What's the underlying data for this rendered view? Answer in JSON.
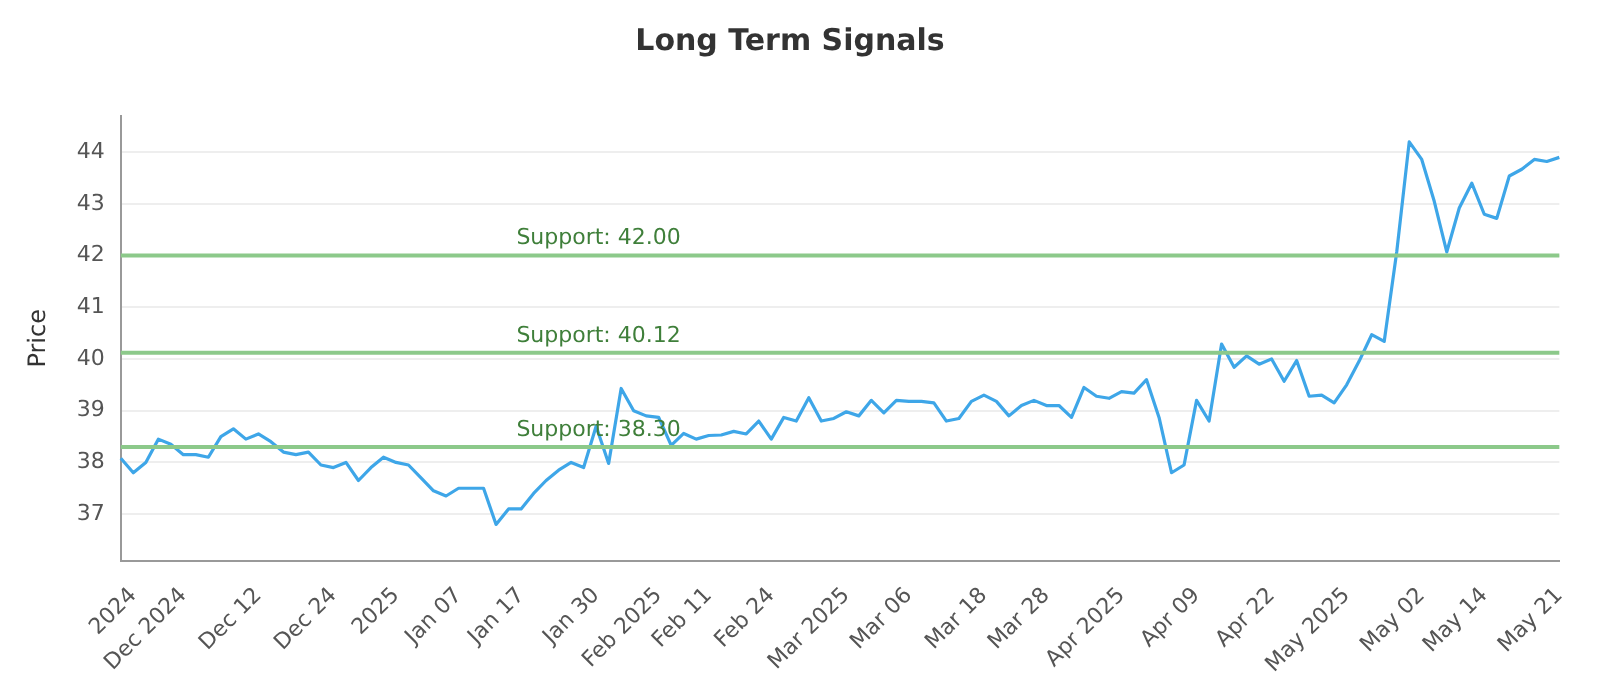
{
  "chart_data": {
    "type": "line",
    "title": "Long Term Signals",
    "ylabel": "Price",
    "categories": [
      null,
      "2024",
      null,
      null,
      null,
      "Dec 2024",
      null,
      null,
      null,
      null,
      null,
      "Dec 12",
      null,
      null,
      null,
      null,
      null,
      "Dec 24",
      null,
      null,
      null,
      null,
      "2025",
      null,
      null,
      null,
      null,
      "Jan 07",
      null,
      null,
      null,
      null,
      "Jan 17",
      null,
      null,
      null,
      null,
      null,
      "Jan 30",
      null,
      null,
      null,
      null,
      "Feb 2025",
      null,
      null,
      null,
      "Feb 11",
      null,
      null,
      null,
      null,
      "Feb 24",
      null,
      null,
      null,
      null,
      null,
      "Mar 2025",
      null,
      null,
      null,
      null,
      "Mar 06",
      null,
      null,
      null,
      null,
      null,
      "Mar 18",
      null,
      null,
      null,
      null,
      "Mar 28",
      null,
      null,
      null,
      null,
      null,
      "Apr 2025",
      null,
      null,
      null,
      null,
      null,
      "Apr 09",
      null,
      null,
      null,
      null,
      null,
      "Apr 22",
      null,
      null,
      null,
      null,
      null,
      "May 2025",
      null,
      null,
      null,
      null,
      null,
      "May 02",
      null,
      null,
      null,
      null,
      "May 14",
      null,
      null,
      null,
      null,
      null,
      "May 21"
    ],
    "series": [
      {
        "color": "#3ea6e8",
        "values": [
          38.08,
          37.8,
          38.0,
          38.45,
          38.35,
          38.15,
          38.15,
          38.1,
          38.5,
          38.65,
          38.45,
          38.55,
          38.4,
          38.2,
          38.15,
          38.2,
          37.95,
          37.9,
          38.0,
          37.65,
          37.9,
          38.1,
          38.0,
          37.95,
          37.7,
          37.45,
          37.35,
          37.5,
          37.5,
          37.5,
          36.8,
          37.1,
          37.1,
          37.4,
          37.65,
          37.85,
          38.0,
          37.9,
          38.7,
          37.98,
          39.43,
          39.0,
          38.9,
          38.87,
          38.33,
          38.56,
          38.45,
          38.52,
          38.53,
          38.6,
          38.55,
          38.8,
          38.45,
          38.87,
          38.8,
          39.25,
          38.8,
          38.85,
          38.98,
          38.9,
          39.2,
          38.96,
          39.2,
          39.18,
          39.18,
          39.15,
          38.8,
          38.85,
          39.18,
          39.3,
          39.18,
          38.9,
          39.1,
          39.2,
          39.1,
          39.1,
          38.87,
          39.45,
          39.28,
          39.24,
          39.37,
          39.34,
          39.6,
          38.87,
          37.8,
          37.95,
          39.2,
          38.8,
          40.29,
          39.84,
          40.06,
          39.9,
          40.0,
          39.57,
          39.97,
          39.28,
          39.3,
          39.15,
          39.5,
          39.96,
          40.47,
          40.34,
          42.07,
          44.2,
          43.86,
          43.05,
          42.07,
          42.92,
          43.4,
          42.8,
          42.72,
          43.54,
          43.67,
          43.86,
          43.82,
          43.9
        ]
      }
    ],
    "ylim": [
      36.1,
      44.7
    ],
    "yticks": [
      37,
      38,
      39,
      40,
      41,
      42,
      43,
      44
    ],
    "grid": "y",
    "marker": "none",
    "line_style": "solid",
    "legend": false,
    "ref_lines": [
      {
        "axis": "y",
        "value": 42.0,
        "label": "Support: 42.00",
        "color": "#8cc98a"
      },
      {
        "axis": "y",
        "value": 40.12,
        "label": "Support: 40.12",
        "color": "#8cc98a"
      },
      {
        "axis": "y",
        "value": 38.3,
        "label": "Support: 38.30",
        "color": "#8cc98a"
      }
    ]
  }
}
